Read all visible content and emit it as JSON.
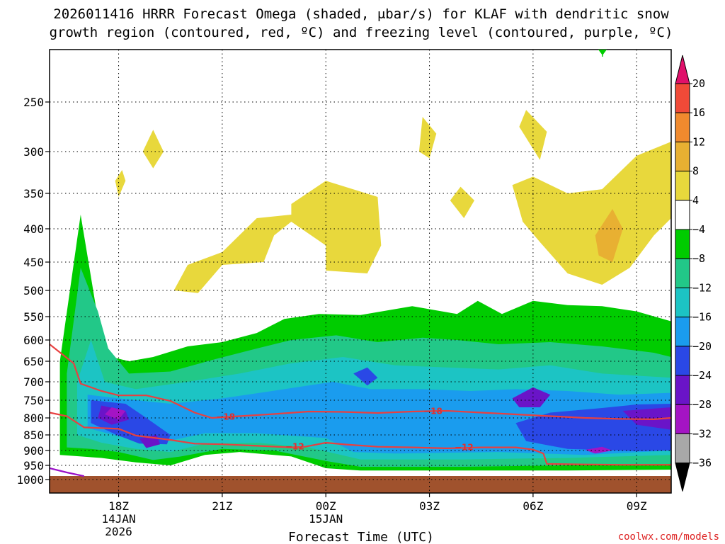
{
  "chart_data": {
    "type": "heatmap",
    "title_line1": "2026011416 HRRR Forecast Omega (shaded, μbar/s) for KLAF with dendritic snow",
    "title_line2": "growth region (contoured, red, ºC) and freezing level (contoured, purple, ºC)",
    "xlabel": "Forecast Time (UTC)",
    "ylabel": "",
    "y_axis": {
      "scale": "pressure",
      "units": "mb",
      "ticks": [
        250,
        300,
        350,
        400,
        450,
        500,
        550,
        600,
        650,
        700,
        750,
        800,
        850,
        900,
        950,
        1000
      ],
      "ylim": [
        200,
        1000
      ]
    },
    "x_axis": {
      "ticks": [
        {
          "hour": 18,
          "label": "18Z",
          "sub1": "14JAN",
          "sub2": "2026"
        },
        {
          "hour": 21,
          "label": "21Z",
          "sub1": "",
          "sub2": ""
        },
        {
          "hour": 24,
          "label": "00Z",
          "sub1": "15JAN",
          "sub2": ""
        },
        {
          "hour": 27,
          "label": "03Z",
          "sub1": "",
          "sub2": ""
        },
        {
          "hour": 30,
          "label": "06Z",
          "sub1": "",
          "sub2": ""
        },
        {
          "hour": 33,
          "label": "09Z",
          "sub1": "",
          "sub2": ""
        }
      ],
      "xlim": [
        16,
        34
      ]
    },
    "grid": true,
    "colorbar": {
      "placement": "right",
      "levels": [
        "20",
        "16",
        "12",
        "8",
        "4",
        "−4",
        "−8",
        "−12",
        "−16",
        "−20",
        "−24",
        "−28",
        "−32",
        "−36"
      ],
      "colors": [
        "#f0306a",
        "#f04a38",
        "#f08a2e",
        "#e8b032",
        "#e8d83c",
        "#ffffff",
        "#00cc00",
        "#22c888",
        "#1cc4c4",
        "#1a9cee",
        "#2a48e6",
        "#6a14c8",
        "#a414c4",
        "#a8a8a8",
        "#000000"
      ],
      "top_arrow_color": "#e0106a",
      "bottom_arrow_color": "#000000"
    },
    "contour_labels": [
      "−18",
      "−18",
      "−12",
      "−12"
    ],
    "series": [
      {
        "name": "dendritic growth upper contour",
        "color": "#e84040",
        "points": [
          [
            16.0,
            610
          ],
          [
            16.7,
            655
          ],
          [
            16.9,
            705
          ],
          [
            17.5,
            725
          ],
          [
            18.0,
            737
          ],
          [
            18.8,
            737
          ],
          [
            19.5,
            752
          ],
          [
            20.2,
            785
          ],
          [
            20.7,
            800
          ],
          [
            21.5,
            795
          ],
          [
            22.5,
            789
          ],
          [
            23.5,
            782
          ],
          [
            24.5,
            783
          ],
          [
            25.5,
            786
          ],
          [
            26.5,
            782
          ],
          [
            27.5,
            780
          ],
          [
            28.5,
            785
          ],
          [
            29.5,
            790
          ],
          [
            30.5,
            795
          ],
          [
            31.5,
            800
          ],
          [
            32.5,
            803
          ],
          [
            33.5,
            804
          ],
          [
            34.0,
            800
          ]
        ]
      },
      {
        "name": "dendritic growth lower contour",
        "color": "#e84040",
        "points": [
          [
            16.0,
            785
          ],
          [
            16.5,
            795
          ],
          [
            17.0,
            828
          ],
          [
            18.0,
            832
          ],
          [
            18.5,
            852
          ],
          [
            19.5,
            866
          ],
          [
            20.2,
            878
          ],
          [
            21.0,
            880
          ],
          [
            22.0,
            885
          ],
          [
            23.0,
            890
          ],
          [
            23.4,
            888
          ],
          [
            24.0,
            875
          ],
          [
            24.6,
            881
          ],
          [
            25.5,
            888
          ],
          [
            26.5,
            890
          ],
          [
            27.5,
            893
          ],
          [
            28.5,
            890
          ],
          [
            29.5,
            890
          ],
          [
            30.0,
            897
          ],
          [
            30.3,
            910
          ],
          [
            30.4,
            945
          ],
          [
            31.5,
            947
          ],
          [
            32.5,
            948
          ],
          [
            34.0,
            948
          ]
        ]
      },
      {
        "name": "freezing level contour",
        "color": "#9a10c8",
        "points": [
          [
            16.0,
            960
          ],
          [
            16.5,
            975
          ],
          [
            17.0,
            988
          ]
        ]
      }
    ],
    "omega_regions": [
      {
        "category": "-4",
        "points": [
          [
            16.3,
            915
          ],
          [
            16.3,
            650
          ],
          [
            16.9,
            380
          ],
          [
            17.5,
            600
          ],
          [
            17.8,
            640
          ],
          [
            18.3,
            650
          ],
          [
            19,
            640
          ],
          [
            20,
            615
          ],
          [
            21,
            605
          ],
          [
            22,
            585
          ],
          [
            22.8,
            555
          ],
          [
            23.8,
            545
          ],
          [
            25,
            547
          ],
          [
            26.5,
            530
          ],
          [
            27.8,
            545
          ],
          [
            28.4,
            520
          ],
          [
            29.1,
            545
          ],
          [
            30,
            520
          ],
          [
            31,
            528
          ],
          [
            32,
            530
          ],
          [
            33,
            540
          ],
          [
            34,
            560
          ],
          [
            34,
            965
          ],
          [
            31,
            968
          ],
          [
            28,
            968
          ],
          [
            25,
            968
          ],
          [
            24,
            960
          ],
          [
            23,
            920
          ],
          [
            21.5,
            905
          ],
          [
            20.5,
            915
          ],
          [
            19.5,
            950
          ],
          [
            18.5,
            940
          ],
          [
            17.5,
            925
          ]
        ]
      },
      {
        "category": "-8",
        "points": [
          [
            16.5,
            890
          ],
          [
            16.5,
            680
          ],
          [
            16.9,
            460
          ],
          [
            17.4,
            540
          ],
          [
            17.7,
            620
          ],
          [
            18.3,
            680
          ],
          [
            19.5,
            675
          ],
          [
            20.8,
            645
          ],
          [
            22,
            620
          ],
          [
            23,
            600
          ],
          [
            24.3,
            590
          ],
          [
            25.5,
            605
          ],
          [
            26.8,
            595
          ],
          [
            27.8,
            600
          ],
          [
            29,
            610
          ],
          [
            30.5,
            605
          ],
          [
            32,
            615
          ],
          [
            33.5,
            630
          ],
          [
            34,
            640
          ],
          [
            34,
            945
          ],
          [
            31,
            950
          ],
          [
            28,
            955
          ],
          [
            25,
            955
          ],
          [
            24,
            935
          ],
          [
            22.5,
            900
          ],
          [
            21,
            895
          ],
          [
            19.8,
            920
          ],
          [
            19,
            932
          ],
          [
            18,
            905
          ],
          [
            17.2,
            895
          ]
        ]
      },
      {
        "category": "-12",
        "points": [
          [
            16.8,
            850
          ],
          [
            16.8,
            700
          ],
          [
            17.2,
            600
          ],
          [
            17.6,
            700
          ],
          [
            18.5,
            720
          ],
          [
            20,
            700
          ],
          [
            21.5,
            680
          ],
          [
            23,
            655
          ],
          [
            24.5,
            640
          ],
          [
            26,
            660
          ],
          [
            27.5,
            665
          ],
          [
            29,
            670
          ],
          [
            30.5,
            660
          ],
          [
            32,
            680
          ],
          [
            34,
            690
          ],
          [
            34,
            915
          ],
          [
            31,
            925
          ],
          [
            28,
            930
          ],
          [
            25,
            930
          ],
          [
            23.5,
            890
          ],
          [
            22,
            875
          ],
          [
            20.5,
            878
          ],
          [
            19.5,
            905
          ],
          [
            18.5,
            895
          ],
          [
            17.5,
            875
          ]
        ]
      },
      {
        "category": "-16",
        "points": [
          [
            17.1,
            830
          ],
          [
            17.1,
            735
          ],
          [
            18,
            745
          ],
          [
            19.5,
            760
          ],
          [
            21,
            745
          ],
          [
            22.8,
            720
          ],
          [
            24.2,
            700
          ],
          [
            25.3,
            720
          ],
          [
            26.8,
            720
          ],
          [
            28.2,
            725
          ],
          [
            29.5,
            720
          ],
          [
            31,
            725
          ],
          [
            32.5,
            735
          ],
          [
            34,
            730
          ],
          [
            34,
            900
          ],
          [
            31.5,
            915
          ],
          [
            29,
            905
          ],
          [
            26,
            910
          ],
          [
            24.8,
            905
          ],
          [
            24,
            860
          ],
          [
            22,
            845
          ],
          [
            20.5,
            845
          ],
          [
            19.2,
            875
          ],
          [
            18.2,
            860
          ]
        ]
      },
      {
        "category": "-20",
        "points": [
          [
            17.2,
            815
          ],
          [
            17.2,
            750
          ],
          [
            18.2,
            760
          ],
          [
            18.8,
            800
          ],
          [
            19.5,
            850
          ],
          [
            19.4,
            880
          ],
          [
            18.6,
            878
          ],
          [
            17.9,
            848
          ]
        ]
      },
      {
        "category": "-20",
        "points": [
          [
            29.5,
            815
          ],
          [
            30.5,
            785
          ],
          [
            32,
            772
          ],
          [
            33,
            762
          ],
          [
            34,
            760
          ],
          [
            34,
            900
          ],
          [
            33,
            902
          ],
          [
            31,
            895
          ],
          [
            29.8,
            870
          ]
        ]
      },
      {
        "category": "-20",
        "points": [
          [
            24.8,
            680
          ],
          [
            25.2,
            665
          ],
          [
            25.5,
            690
          ],
          [
            25.2,
            710
          ]
        ]
      },
      {
        "category": "-24",
        "points": [
          [
            17.4,
            800
          ],
          [
            17.5,
            765
          ],
          [
            18.2,
            780
          ],
          [
            18.3,
            805
          ],
          [
            17.8,
            820
          ]
        ]
      },
      {
        "category": "-24",
        "points": [
          [
            18.6,
            862
          ],
          [
            19.1,
            850
          ],
          [
            19.2,
            880
          ],
          [
            18.8,
            892
          ]
        ]
      },
      {
        "category": "-24",
        "points": [
          [
            29.4,
            745
          ],
          [
            30,
            715
          ],
          [
            30.5,
            735
          ],
          [
            30.2,
            770
          ],
          [
            29.6,
            770
          ]
        ]
      },
      {
        "category": "-24",
        "points": [
          [
            32.6,
            780
          ],
          [
            34,
            770
          ],
          [
            34,
            835
          ],
          [
            33,
            820
          ]
        ]
      },
      {
        "category": "-28",
        "points": [
          [
            17.6,
            790
          ],
          [
            17.8,
            770
          ],
          [
            18.2,
            780
          ],
          [
            18,
            805
          ]
        ]
      },
      {
        "category": "-28",
        "points": [
          [
            31.5,
            898
          ],
          [
            32,
            888
          ],
          [
            32.3,
            900
          ],
          [
            31.8,
            910
          ]
        ]
      },
      {
        "category": "4",
        "points": [
          [
            19.6,
            500
          ],
          [
            20,
            455
          ],
          [
            21,
            435
          ],
          [
            22,
            385
          ],
          [
            23,
            380
          ],
          [
            23,
            365
          ],
          [
            24,
            335
          ],
          [
            25.5,
            355
          ],
          [
            25.6,
            425
          ],
          [
            25.2,
            470
          ],
          [
            24,
            465
          ],
          [
            24,
            425
          ],
          [
            23,
            390
          ],
          [
            22.5,
            410
          ],
          [
            22.2,
            450
          ],
          [
            21,
            455
          ],
          [
            20.3,
            505
          ]
        ]
      },
      {
        "category": "4",
        "points": [
          [
            29.4,
            340
          ],
          [
            30,
            330
          ],
          [
            31,
            350
          ],
          [
            32,
            345
          ],
          [
            33,
            305
          ],
          [
            34,
            290
          ],
          [
            34,
            385
          ],
          [
            33.5,
            410
          ],
          [
            32.8,
            460
          ],
          [
            32,
            490
          ],
          [
            31,
            470
          ],
          [
            30.2,
            420
          ],
          [
            29.7,
            390
          ]
        ]
      },
      {
        "category": "4",
        "points": [
          [
            18.7,
            300
          ],
          [
            19,
            278
          ],
          [
            19.3,
            300
          ],
          [
            19,
            320
          ]
        ]
      },
      {
        "category": "4",
        "points": [
          [
            17.9,
            335
          ],
          [
            18.1,
            322
          ],
          [
            18.2,
            335
          ],
          [
            18,
            355
          ]
        ]
      },
      {
        "category": "4",
        "points": [
          [
            27.6,
            360
          ],
          [
            27.9,
            342
          ],
          [
            28.3,
            360
          ],
          [
            28,
            385
          ]
        ]
      },
      {
        "category": "4",
        "points": [
          [
            26.7,
            300
          ],
          [
            26.8,
            265
          ],
          [
            27.2,
            282
          ],
          [
            27,
            308
          ]
        ]
      },
      {
        "category": "4",
        "points": [
          [
            29.6,
            275
          ],
          [
            29.8,
            258
          ],
          [
            30.4,
            280
          ],
          [
            30.2,
            310
          ]
        ]
      },
      {
        "category": "8",
        "points": [
          [
            31.8,
            410
          ],
          [
            32.3,
            372
          ],
          [
            32.6,
            400
          ],
          [
            32.3,
            450
          ],
          [
            31.9,
            440
          ]
        ]
      }
    ]
  },
  "watermark": "coolwx.com/models"
}
